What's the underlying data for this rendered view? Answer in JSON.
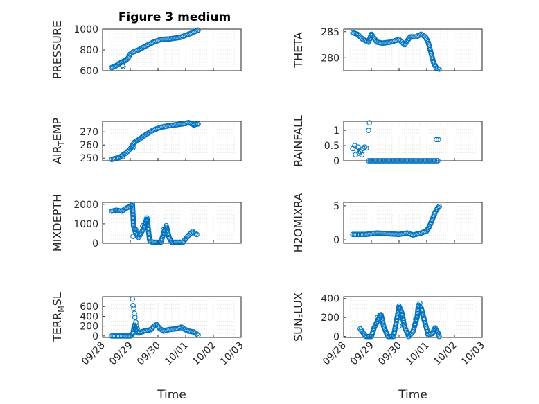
{
  "figure": {
    "title": "Figure 3 medium",
    "xlabel": "Time",
    "x_ticks": [
      "09/28",
      "09/29",
      "09/30",
      "10/01",
      "10/02",
      "10/03"
    ],
    "marker_color": "#0072BD",
    "grid": "major and minor dotted"
  },
  "chart_data": [
    {
      "type": "scatter",
      "ylabel": "PRESSURE",
      "ylim": [
        600,
        1000
      ],
      "y_ticks": [
        "600",
        "800",
        "1000"
      ],
      "x_range": [
        "09/28",
        "10/03"
      ],
      "trend": [
        [
          0.33,
          630
        ],
        [
          0.45,
          640
        ],
        [
          0.6,
          670
        ],
        [
          0.75,
          690
        ],
        [
          0.83,
          700
        ],
        [
          0.92,
          720
        ],
        [
          1.0,
          760
        ],
        [
          1.1,
          780
        ],
        [
          1.3,
          800
        ],
        [
          1.5,
          830
        ],
        [
          1.8,
          870
        ],
        [
          2.1,
          900
        ],
        [
          2.4,
          905
        ],
        [
          2.8,
          920
        ],
        [
          3.2,
          960
        ],
        [
          3.45,
          990
        ]
      ],
      "highlights": [
        [
          0.72,
          650
        ],
        [
          0.74,
          640
        ]
      ]
    },
    {
      "type": "scatter",
      "ylabel": "THETA",
      "ylim": [
        277.5,
        285.5
      ],
      "y_ticks": [
        "280",
        "285"
      ],
      "x_range": [
        "09/28",
        "10/03"
      ],
      "trend": [
        [
          0.33,
          284.8
        ],
        [
          0.5,
          284.5
        ],
        [
          0.7,
          283.5
        ],
        [
          0.9,
          283.0
        ],
        [
          1.0,
          284.5
        ],
        [
          1.2,
          283.0
        ],
        [
          1.4,
          282.8
        ],
        [
          1.7,
          283.0
        ],
        [
          2.0,
          283.5
        ],
        [
          2.2,
          282.5
        ],
        [
          2.4,
          284.0
        ],
        [
          2.6,
          284.0
        ],
        [
          2.8,
          284.5
        ],
        [
          2.95,
          284.0
        ],
        [
          3.05,
          283.0
        ],
        [
          3.15,
          281.0
        ],
        [
          3.25,
          279.0
        ],
        [
          3.35,
          278.0
        ],
        [
          3.45,
          277.8
        ]
      ],
      "highlights": []
    },
    {
      "type": "scatter",
      "ylabel": "AIR_TEMP",
      "ylim": [
        248,
        278
      ],
      "y_ticks": [
        "250",
        "260",
        "270"
      ],
      "x_range": [
        "09/28",
        "10/03"
      ],
      "trend": [
        [
          0.33,
          249
        ],
        [
          0.6,
          250.5
        ],
        [
          0.85,
          254
        ],
        [
          1.0,
          257
        ],
        [
          1.15,
          262
        ],
        [
          1.3,
          264
        ],
        [
          1.5,
          267
        ],
        [
          1.8,
          271
        ],
        [
          2.1,
          273.5
        ],
        [
          2.5,
          275
        ],
        [
          2.9,
          276
        ],
        [
          3.1,
          277
        ],
        [
          3.3,
          275.5
        ],
        [
          3.45,
          276
        ]
      ],
      "highlights": [
        [
          0.72,
          251
        ],
        [
          1.1,
          258
        ],
        [
          3.3,
          275
        ]
      ]
    },
    {
      "type": "scatter",
      "ylabel": "RAINFALL",
      "ylim": [
        0,
        1.3
      ],
      "y_ticks": [
        "0",
        "0.5",
        "1"
      ],
      "x_range": [
        "09/28",
        "10/03"
      ],
      "trend": [
        [
          0.9,
          0
        ],
        [
          3.4,
          0
        ]
      ],
      "highlights": [
        [
          0.33,
          0.4
        ],
        [
          0.4,
          0.5
        ],
        [
          0.43,
          0.2
        ],
        [
          0.48,
          0.35
        ],
        [
          0.52,
          0.45
        ],
        [
          0.56,
          0.25
        ],
        [
          0.6,
          0.3
        ],
        [
          0.66,
          0.2
        ],
        [
          0.7,
          0.4
        ],
        [
          0.76,
          0.45
        ],
        [
          0.82,
          0.42
        ],
        [
          0.9,
          1.0
        ],
        [
          0.93,
          1.25
        ],
        [
          3.35,
          0.7
        ],
        [
          3.42,
          0.7
        ]
      ]
    },
    {
      "type": "scatter",
      "ylabel": "MIXDEPTH",
      "ylim": [
        0,
        2100
      ],
      "y_ticks": [
        "0",
        "1000",
        "2000"
      ],
      "x_range": [
        "09/28",
        "10/03"
      ],
      "trend": [
        [
          0.33,
          1650
        ],
        [
          0.5,
          1700
        ],
        [
          0.7,
          1650
        ],
        [
          0.85,
          1800
        ],
        [
          1.0,
          1900
        ],
        [
          1.08,
          2000
        ],
        [
          1.12,
          900
        ],
        [
          1.2,
          500
        ],
        [
          1.3,
          300
        ],
        [
          1.5,
          800
        ],
        [
          1.6,
          1300
        ],
        [
          1.7,
          150
        ],
        [
          1.8,
          50
        ],
        [
          2.1,
          50
        ],
        [
          2.3,
          900
        ],
        [
          2.4,
          300
        ],
        [
          2.5,
          50
        ],
        [
          2.9,
          50
        ],
        [
          3.1,
          400
        ],
        [
          3.25,
          600
        ],
        [
          3.4,
          450
        ]
      ],
      "highlights": [
        [
          1.1,
          350
        ],
        [
          1.2,
          700
        ],
        [
          1.35,
          500
        ],
        [
          1.45,
          900
        ],
        [
          1.6,
          1100
        ],
        [
          2.2,
          700
        ],
        [
          2.25,
          500
        ]
      ]
    },
    {
      "type": "scatter",
      "ylabel": "H2OMIXRA",
      "ylim": [
        -0.5,
        5.5
      ],
      "y_ticks": [
        "0",
        "5"
      ],
      "x_range": [
        "09/28",
        "10/03"
      ],
      "trend": [
        [
          0.33,
          0.8
        ],
        [
          0.8,
          0.8
        ],
        [
          1.2,
          1.0
        ],
        [
          1.6,
          0.9
        ],
        [
          2.0,
          0.8
        ],
        [
          2.3,
          1.0
        ],
        [
          2.5,
          0.7
        ],
        [
          2.8,
          1.0
        ],
        [
          3.0,
          1.3
        ],
        [
          3.1,
          2.0
        ],
        [
          3.2,
          3.0
        ],
        [
          3.3,
          4.0
        ],
        [
          3.38,
          4.6
        ],
        [
          3.45,
          4.9
        ]
      ],
      "highlights": []
    },
    {
      "type": "scatter",
      "ylabel": "TERR_MSL",
      "ylim": [
        -30,
        800
      ],
      "y_ticks": [
        "0",
        "200",
        "400",
        "600"
      ],
      "x_range": [
        "09/28",
        "10/03"
      ],
      "trend": [
        [
          0.33,
          0
        ],
        [
          0.8,
          0
        ],
        [
          1.0,
          0
        ],
        [
          1.1,
          50
        ],
        [
          1.15,
          220
        ],
        [
          1.2,
          120
        ],
        [
          1.3,
          60
        ],
        [
          1.5,
          100
        ],
        [
          1.75,
          130
        ],
        [
          1.85,
          200
        ],
        [
          1.95,
          230
        ],
        [
          2.05,
          160
        ],
        [
          2.2,
          100
        ],
        [
          2.4,
          130
        ],
        [
          2.7,
          150
        ],
        [
          2.85,
          180
        ],
        [
          2.95,
          140
        ],
        [
          3.1,
          100
        ],
        [
          3.3,
          80
        ],
        [
          3.45,
          20
        ]
      ],
      "highlights": [
        [
          1.08,
          750
        ],
        [
          1.1,
          620
        ],
        [
          1.13,
          560
        ],
        [
          1.15,
          460
        ],
        [
          1.17,
          380
        ],
        [
          1.2,
          280
        ],
        [
          1.22,
          200
        ],
        [
          1.25,
          150
        ],
        [
          1.3,
          80
        ]
      ]
    },
    {
      "type": "scatter",
      "ylabel": "SUN_FLUX",
      "ylim": [
        -10,
        420
      ],
      "y_ticks": [
        "0",
        "200",
        "400"
      ],
      "x_range": [
        "09/28",
        "10/03"
      ],
      "trend": [
        [
          0.6,
          80
        ],
        [
          0.7,
          40
        ],
        [
          0.8,
          0
        ],
        [
          1.0,
          0
        ],
        [
          1.1,
          90
        ],
        [
          1.25,
          180
        ],
        [
          1.35,
          230
        ],
        [
          1.45,
          100
        ],
        [
          1.6,
          0
        ],
        [
          1.8,
          0
        ],
        [
          1.95,
          230
        ],
        [
          2.0,
          320
        ],
        [
          2.1,
          250
        ],
        [
          2.2,
          100
        ],
        [
          2.35,
          0
        ],
        [
          2.5,
          50
        ],
        [
          2.65,
          200
        ],
        [
          2.7,
          330
        ],
        [
          2.8,
          300
        ],
        [
          2.95,
          130
        ],
        [
          3.05,
          20
        ],
        [
          3.2,
          30
        ],
        [
          3.3,
          90
        ],
        [
          3.4,
          40
        ],
        [
          3.45,
          0
        ]
      ],
      "highlights": [
        [
          1.18,
          140
        ],
        [
          1.22,
          200
        ],
        [
          1.3,
          220
        ],
        [
          1.55,
          40
        ],
        [
          2.0,
          110
        ],
        [
          2.05,
          200
        ],
        [
          2.15,
          170
        ],
        [
          2.55,
          120
        ],
        [
          2.6,
          180
        ],
        [
          2.75,
          350
        ],
        [
          2.85,
          230
        ],
        [
          2.9,
          180
        ]
      ]
    }
  ]
}
